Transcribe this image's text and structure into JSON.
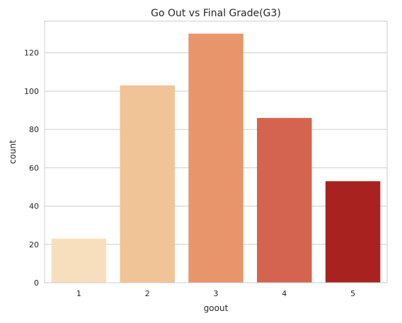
{
  "chart_data": {
    "type": "bar",
    "title": "Go Out vs Final Grade(G3)",
    "xlabel": "goout",
    "ylabel": "count",
    "categories": [
      "1",
      "2",
      "3",
      "4",
      "5"
    ],
    "values": [
      23,
      103,
      130,
      86,
      53
    ],
    "ylim": [
      0,
      136.5
    ],
    "yticks": [
      0,
      20,
      40,
      60,
      80,
      100,
      120
    ],
    "grid": true,
    "colors": [
      "#f7dfbe",
      "#f0c496",
      "#e8956c",
      "#d4634f",
      "#a8231f"
    ]
  }
}
